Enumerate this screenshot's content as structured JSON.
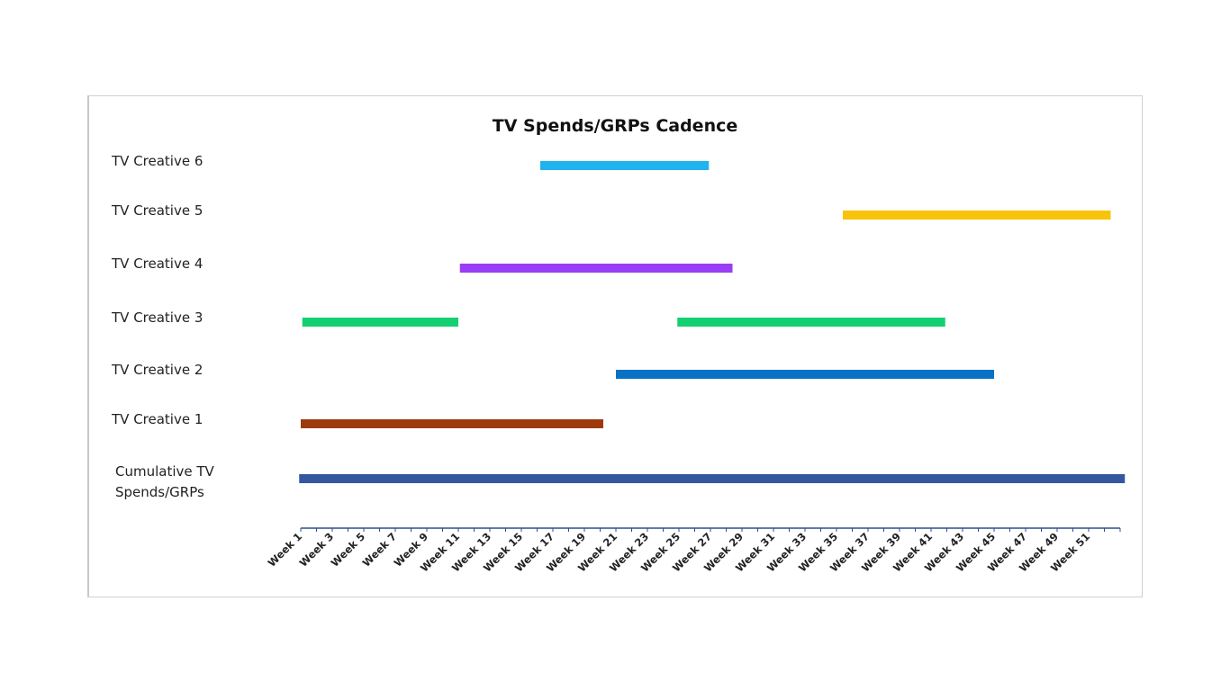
{
  "chart_data": {
    "type": "gantt",
    "title": "TV Spends/GRPs Cadence",
    "rows": [
      {
        "label": "TV Creative 6",
        "label_lines": [
          "TV Creative 6"
        ],
        "color": "#20B4EE",
        "segments": [
          [
            16.2,
            26.9
          ]
        ]
      },
      {
        "label": "TV Creative 5",
        "label_lines": [
          "TV Creative 5"
        ],
        "color": "#F8C30A",
        "segments": [
          [
            35.4,
            52.4
          ]
        ]
      },
      {
        "label": "TV Creative 4",
        "label_lines": [
          "TV Creative 4"
        ],
        "color": "#9B3CF6",
        "segments": [
          [
            11.1,
            28.4
          ]
        ]
      },
      {
        "label": "TV Creative 3",
        "label_lines": [
          "TV Creative 3"
        ],
        "color": "#14D070",
        "segments": [
          [
            1.1,
            11.0
          ],
          [
            24.9,
            41.9
          ]
        ]
      },
      {
        "label": "TV Creative 2",
        "label_lines": [
          "TV Creative 2"
        ],
        "color": "#0A72C4",
        "segments": [
          [
            21.0,
            45.0
          ]
        ]
      },
      {
        "label": "TV Creative 1",
        "label_lines": [
          "TV Creative 1"
        ],
        "color": "#9C3A0E",
        "segments": [
          [
            1.0,
            20.2
          ]
        ]
      },
      {
        "label": "Cumulative TV Spends/GRPs",
        "label_lines": [
          "Cumulative TV",
          "Spends/GRPs"
        ],
        "color": "#3457A0",
        "segments": [
          [
            0.9,
            53.3
          ]
        ]
      }
    ],
    "x_ticks": [
      "Week 1",
      "Week 3",
      "Week 5",
      "Week 7",
      "Week 9",
      "Week 11",
      "Week 13",
      "Week 15",
      "Week 17",
      "Week 19",
      "Week 21",
      "Week 23",
      "Week 25",
      "Week 27",
      "Week 29",
      "Week 31",
      "Week 33",
      "Week 35",
      "Week 37",
      "Week 39",
      "Week 41",
      "Week 43",
      "Week 45",
      "Week 47",
      "Week 49",
      "Week 51"
    ],
    "xlim": [
      1,
      53
    ],
    "axis_color": "#2F4F8F",
    "grid": false
  }
}
